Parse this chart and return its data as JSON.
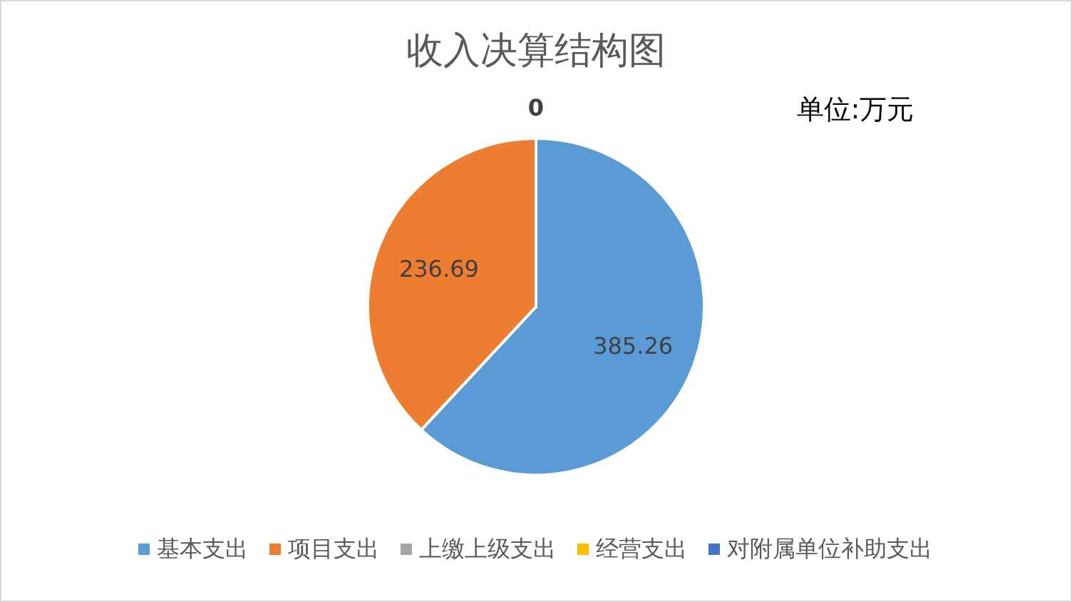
{
  "chart_data": {
    "type": "pie",
    "title": "收入决算结构图",
    "annotations": [
      "单位:万元"
    ],
    "categories": [
      "基本支出",
      "项目支出",
      "上缴上级支出",
      "经营支出",
      "对附属单位补助支出"
    ],
    "values": [
      385.26,
      236.69,
      0,
      0,
      0
    ],
    "colors": [
      "#5b9bd5",
      "#ed7d31",
      "#a5a5a5",
      "#ffc000",
      "#4472c4"
    ],
    "value_labels": [
      "385.26",
      "236.69",
      "0",
      null,
      null
    ],
    "legend": "bottom"
  }
}
